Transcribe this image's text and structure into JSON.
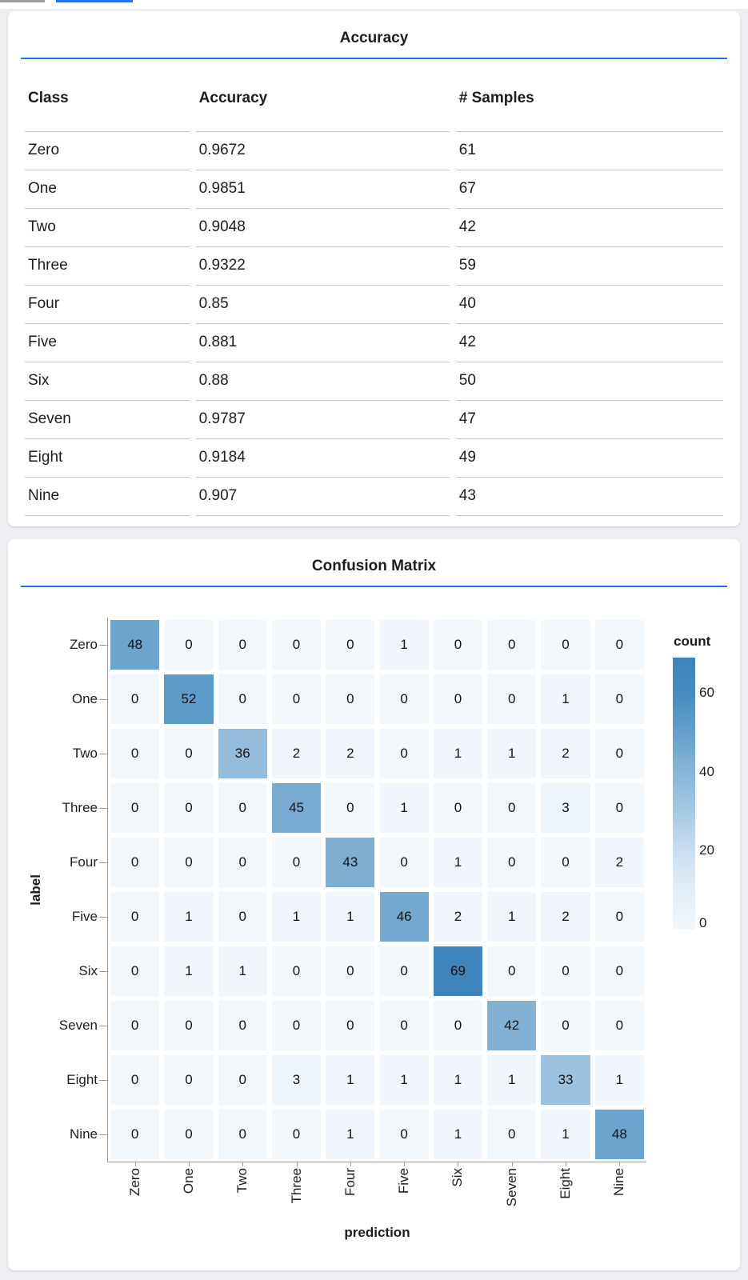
{
  "theme": {
    "accent_blue": "#2272e6",
    "top_gray_segment_color": "#9b9b9b",
    "card_background": "#ffffff",
    "page_background": "#edeff3",
    "table_border_color": "#c6c8cb"
  },
  "accuracy_card": {
    "title": "Accuracy",
    "columns": [
      "Class",
      "Accuracy",
      "# Samples"
    ],
    "rows": [
      [
        "Zero",
        "0.9672",
        "61"
      ],
      [
        "One",
        "0.9851",
        "67"
      ],
      [
        "Two",
        "0.9048",
        "42"
      ],
      [
        "Three",
        "0.9322",
        "59"
      ],
      [
        "Four",
        "0.85",
        "40"
      ],
      [
        "Five",
        "0.881",
        "42"
      ],
      [
        "Six",
        "0.88",
        "50"
      ],
      [
        "Seven",
        "0.9787",
        "47"
      ],
      [
        "Eight",
        "0.9184",
        "49"
      ],
      [
        "Nine",
        "0.907",
        "43"
      ]
    ]
  },
  "confusion_card": {
    "title": "Confusion Matrix"
  },
  "chart_data": {
    "type": "heatmap",
    "title": "Confusion Matrix",
    "xlabel": "prediction",
    "ylabel": "label",
    "x_categories": [
      "Zero",
      "One",
      "Two",
      "Three",
      "Four",
      "Five",
      "Six",
      "Seven",
      "Eight",
      "Nine"
    ],
    "y_categories": [
      "Zero",
      "One",
      "Two",
      "Three",
      "Four",
      "Five",
      "Six",
      "Seven",
      "Eight",
      "Nine"
    ],
    "matrix": [
      [
        48,
        0,
        0,
        0,
        0,
        1,
        0,
        0,
        0,
        0
      ],
      [
        0,
        52,
        0,
        0,
        0,
        0,
        0,
        0,
        1,
        0
      ],
      [
        0,
        0,
        36,
        2,
        2,
        0,
        1,
        1,
        2,
        0
      ],
      [
        0,
        0,
        0,
        45,
        0,
        1,
        0,
        0,
        3,
        0
      ],
      [
        0,
        0,
        0,
        0,
        43,
        0,
        1,
        0,
        0,
        2
      ],
      [
        0,
        1,
        0,
        1,
        1,
        46,
        2,
        1,
        2,
        0
      ],
      [
        0,
        1,
        1,
        0,
        0,
        0,
        69,
        0,
        0,
        0
      ],
      [
        0,
        0,
        0,
        0,
        0,
        0,
        0,
        42,
        0,
        0
      ],
      [
        0,
        0,
        0,
        3,
        1,
        1,
        1,
        1,
        33,
        1
      ],
      [
        0,
        0,
        0,
        0,
        1,
        0,
        1,
        0,
        1,
        48
      ]
    ],
    "legend": {
      "title": "count",
      "ticks": [
        60,
        40,
        20,
        0
      ],
      "domain": [
        0,
        69
      ],
      "position": "right",
      "scheme": "blues"
    },
    "color_scale": {
      "stops": [
        {
          "v": 0,
          "c": "#f2f7fb"
        },
        {
          "v": 10,
          "c": "#e2eef7"
        },
        {
          "v": 20,
          "c": "#cbdeef"
        },
        {
          "v": 30,
          "c": "#a6c8e2"
        },
        {
          "v": 40,
          "c": "#89b5d7"
        },
        {
          "v": 50,
          "c": "#64a0ca"
        },
        {
          "v": 60,
          "c": "#468cbe"
        },
        {
          "v": 69,
          "c": "#3d85ba"
        }
      ]
    },
    "grid": false
  }
}
